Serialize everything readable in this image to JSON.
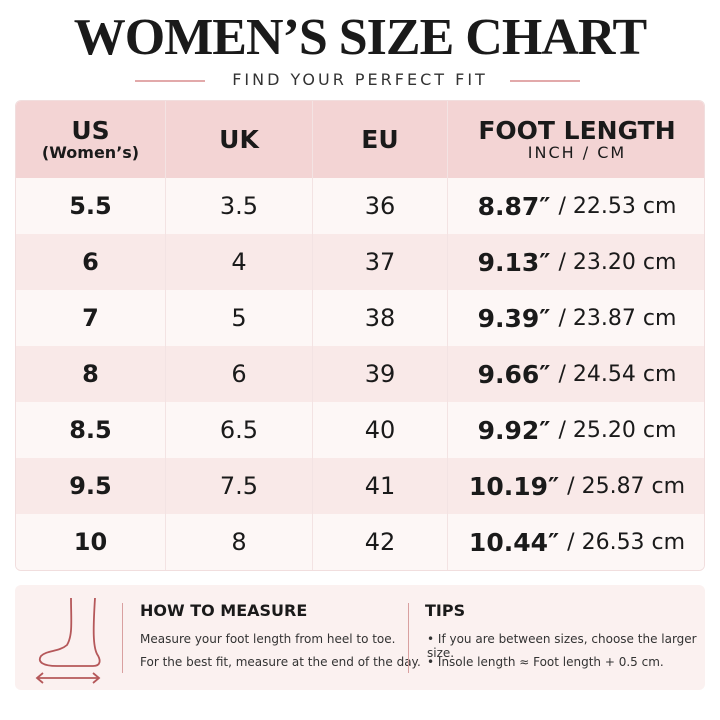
{
  "header": {
    "title": "WOMEN’S SIZE CHART",
    "subtitle": "FIND YOUR PERFECT FIT"
  },
  "table": {
    "header": [
      [
        "US",
        "(Women’s)"
      ],
      "UK",
      "EU",
      [
        "FOOT LENGTH",
        "INCH / CM"
      ]
    ],
    "rows": [
      [
        "5.5",
        "3.5",
        "36",
        "8.87″",
        "/ 22.53 cm"
      ],
      [
        "6",
        "4",
        "37",
        "9.13″",
        "/ 23.20 cm"
      ],
      [
        "7",
        "5",
        "38",
        "9.39″",
        "/ 23.87 cm"
      ],
      [
        "8",
        "6",
        "39",
        "9.66″",
        "/ 24.54 cm"
      ],
      [
        "8.5",
        "6.5",
        "40",
        "9.92″",
        "/ 25.20 cm"
      ],
      [
        "9.5",
        "7.5",
        "41",
        "10.19″",
        "/ 25.87 cm"
      ],
      [
        "10",
        "8",
        "42",
        "10.44″",
        "/ 26.53 cm"
      ]
    ]
  },
  "measure": {
    "title": "HOW TO MEASURE",
    "lines": [
      "Measure your foot length from heel to toe.",
      "For the best fit, measure at the end of the day."
    ]
  },
  "tips": {
    "title": "TIPS",
    "lines": [
      "If you are between sizes, choose the larger size.",
      "Insole length ≈ Foot length + 0.5 cm."
    ]
  }
}
